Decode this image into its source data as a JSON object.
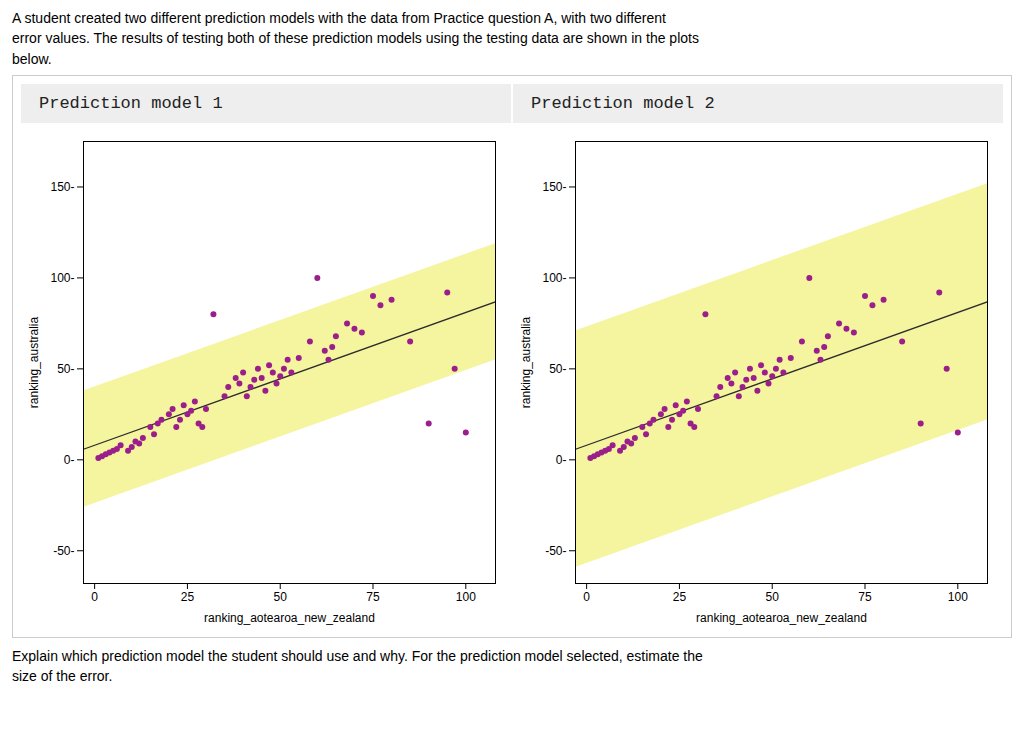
{
  "subtitle": "A student created two different prediction models with the data from Practice question A, with two different\nerror values. The results of testing both of these prediction models using the testing data are shown in the plots\nbelow.",
  "annotations": [
    "Explain which prediction model the student should use and why. For the prediction model selected, estimate the\nsize of the error."
  ],
  "chart_data": [
    {
      "type": "scatter",
      "title": "Prediction model 1",
      "xlabel": "ranking_aotearoa_new_zealand",
      "ylabel": "ranking_australia",
      "x": [
        1,
        2,
        3,
        4,
        5,
        6,
        7,
        9,
        10,
        11,
        12,
        13,
        15,
        16,
        17,
        18,
        20,
        21,
        22,
        23,
        24,
        25,
        26,
        27,
        28,
        29,
        30,
        32,
        35,
        36,
        38,
        39,
        40,
        41,
        42,
        43,
        44,
        45,
        46,
        47,
        48,
        49,
        50,
        51,
        52,
        53,
        55,
        58,
        60,
        62,
        63,
        64,
        65,
        68,
        70,
        72,
        75,
        77,
        80,
        85,
        90,
        95,
        97,
        100
      ],
      "values": [
        1,
        2,
        3,
        4,
        5,
        6,
        8,
        5,
        7,
        10,
        9,
        12,
        18,
        14,
        20,
        22,
        25,
        28,
        18,
        22,
        30,
        25,
        27,
        32,
        20,
        18,
        28,
        80,
        35,
        40,
        45,
        42,
        48,
        35,
        40,
        44,
        50,
        45,
        38,
        52,
        48,
        42,
        46,
        50,
        55,
        48,
        56,
        65,
        100,
        60,
        55,
        62,
        68,
        75,
        72,
        70,
        90,
        85,
        88,
        65,
        20,
        92,
        50,
        15
      ],
      "color": "#9B1F8A",
      "line": {
        "x": [
          -3,
          108
        ],
        "values": [
          5.81,
          86.84
        ],
        "color": "#2d2d2d"
      },
      "band": {
        "x": [
          -3,
          108
        ],
        "lower": [
          -26.19,
          54.84
        ],
        "upper": [
          37.81,
          118.84
        ],
        "color": "#f5f5a0"
      },
      "xlim": [
        -3,
        108
      ],
      "ylim": [
        -68,
        175
      ],
      "xticks": [
        0,
        25,
        50,
        75,
        100
      ],
      "yticks": [
        {
          "value": -50,
          "label": "-50-"
        },
        {
          "value": 0,
          "label": "0-"
        },
        {
          "value": 50,
          "label": "50-"
        },
        {
          "value": 100,
          "label": "100-"
        },
        {
          "value": 150,
          "label": "150-"
        }
      ],
      "grid": false
    },
    {
      "type": "scatter",
      "title": "Prediction model 2",
      "xlabel": "ranking_aotearoa_new_zealand",
      "ylabel": "ranking_australia",
      "x": [
        1,
        2,
        3,
        4,
        5,
        6,
        7,
        9,
        10,
        11,
        12,
        13,
        15,
        16,
        17,
        18,
        20,
        21,
        22,
        23,
        24,
        25,
        26,
        27,
        28,
        29,
        30,
        32,
        35,
        36,
        38,
        39,
        40,
        41,
        42,
        43,
        44,
        45,
        46,
        47,
        48,
        49,
        50,
        51,
        52,
        53,
        55,
        58,
        60,
        62,
        63,
        64,
        65,
        68,
        70,
        72,
        75,
        77,
        80,
        85,
        90,
        95,
        97,
        100
      ],
      "values": [
        1,
        2,
        3,
        4,
        5,
        6,
        8,
        5,
        7,
        10,
        9,
        12,
        18,
        14,
        20,
        22,
        25,
        28,
        18,
        22,
        30,
        25,
        27,
        32,
        20,
        18,
        28,
        80,
        35,
        40,
        45,
        42,
        48,
        35,
        40,
        44,
        50,
        45,
        38,
        52,
        48,
        42,
        46,
        50,
        55,
        48,
        56,
        65,
        100,
        60,
        55,
        62,
        68,
        75,
        72,
        70,
        90,
        85,
        88,
        65,
        20,
        92,
        50,
        15
      ],
      "color": "#9B1F8A",
      "line": {
        "x": [
          -3,
          108
        ],
        "values": [
          5.81,
          86.84
        ],
        "color": "#2d2d2d"
      },
      "band": {
        "x": [
          -3,
          108
        ],
        "lower": [
          -59.19,
          21.84
        ],
        "upper": [
          70.81,
          151.84
        ],
        "color": "#f5f5a0"
      },
      "xlim": [
        -3,
        108
      ],
      "ylim": [
        -68,
        175
      ],
      "xticks": [
        0,
        25,
        50,
        75,
        100
      ],
      "yticks": [
        {
          "value": -50,
          "label": "-50-"
        },
        {
          "value": 0,
          "label": "0-"
        },
        {
          "value": 50,
          "label": "50-"
        },
        {
          "value": 100,
          "label": "100-"
        },
        {
          "value": 150,
          "label": "150-"
        }
      ],
      "grid": false
    }
  ]
}
